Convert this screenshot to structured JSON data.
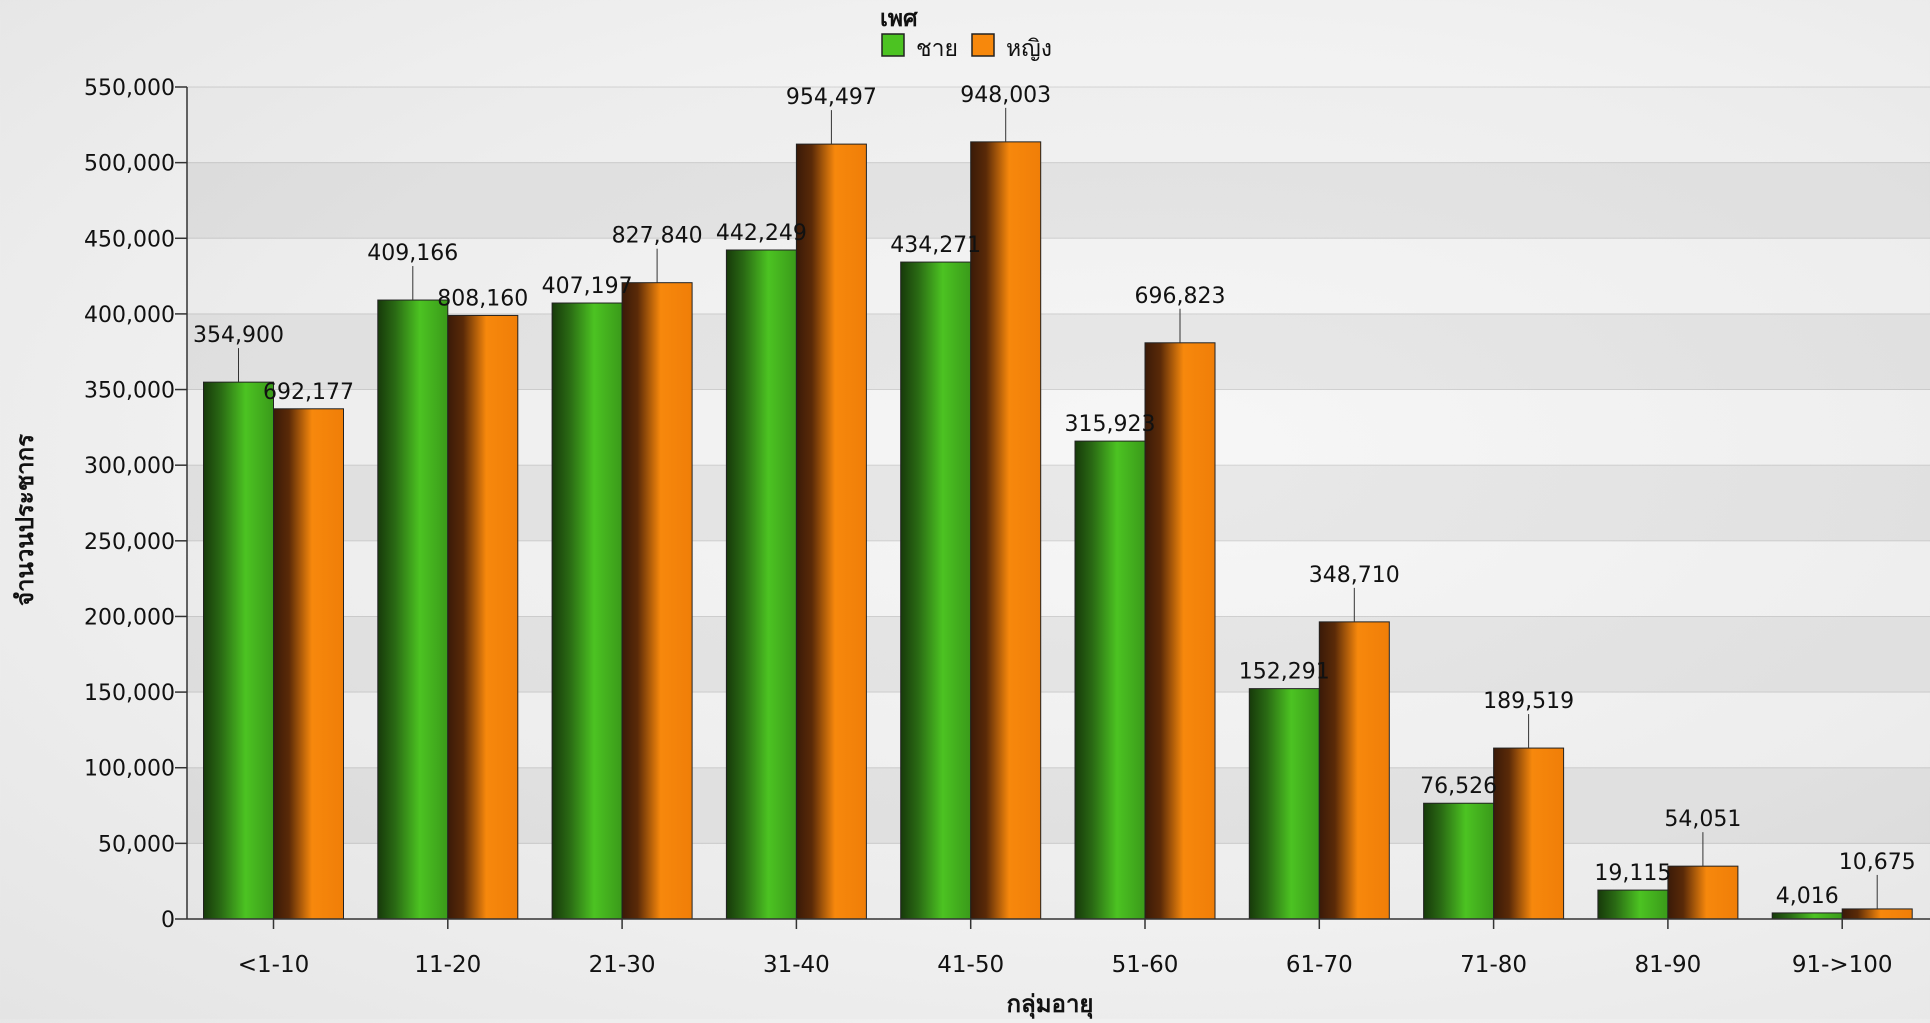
{
  "chart_data": {
    "type": "bar",
    "legend": {
      "title": "เพศ",
      "placement": "top-center"
    },
    "xlabel": "กลุ่มอายุ",
    "ylabel": "จำนวนประชากร",
    "ylim": [
      0,
      550000
    ],
    "yticks": [
      "0",
      "50,000",
      "100,000",
      "150,000",
      "200,000",
      "250,000",
      "300,000",
      "350,000",
      "400,000",
      "450,000",
      "500,000",
      "550,000"
    ],
    "grid": true,
    "categories": [
      "<1-10",
      "11-20",
      "21-30",
      "31-40",
      "41-50",
      "51-60",
      "61-70",
      "71-80",
      "81-90",
      "91->100"
    ],
    "series": [
      {
        "name": "ชาย",
        "color": "#4cc322",
        "values": [
          354900,
          409166,
          407197,
          442249,
          434271,
          315923,
          152291,
          76526,
          19115,
          4016
        ],
        "labels": [
          "354,900",
          "409,166",
          "407,197",
          "442,249",
          "434,271",
          "315,923",
          "152,291",
          "76,526",
          "19,115",
          "4,016"
        ]
      },
      {
        "name": "หญิง",
        "color": "#f7880c",
        "values": [
          337277,
          398994,
          420643,
          512248,
          513732,
          380900,
          196419,
          112993,
          34936,
          6659
        ],
        "labels": [
          "692,177",
          "808,160",
          "827,840",
          "954,497",
          "948,003",
          "696,823",
          "348,710",
          "189,519",
          "54,051",
          "10,675"
        ]
      }
    ]
  }
}
